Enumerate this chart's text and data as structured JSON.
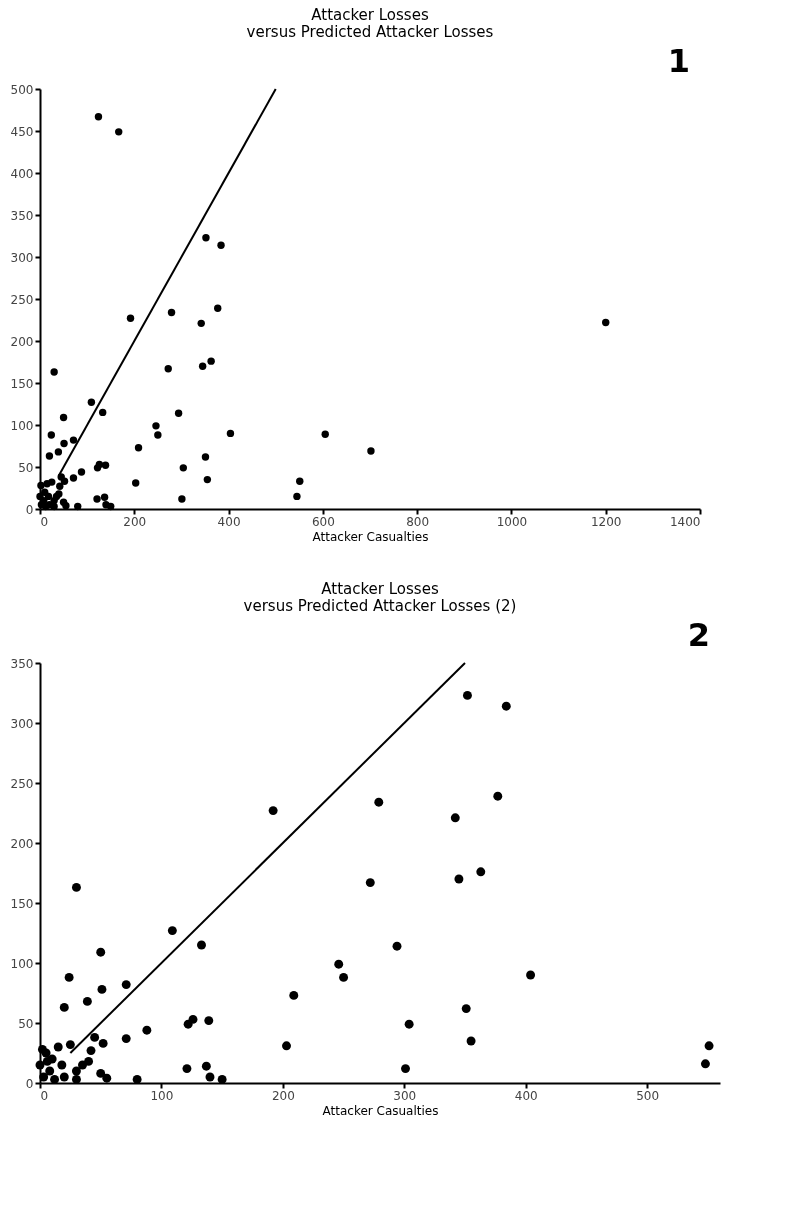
{
  "chart_data": [
    {
      "type": "scatter",
      "title": "Attacker Losses\nversus Predicted Attacker Losses",
      "xlabel": "Attacker Casualties",
      "annotations": [
        "1"
      ],
      "xlim": [
        0,
        1400
      ],
      "xticks": [
        0,
        200,
        400,
        600,
        800,
        1000,
        1200,
        1400
      ],
      "ylim": [
        0,
        500
      ],
      "yticks": [
        0,
        50,
        100,
        150,
        200,
        250,
        300,
        350,
        400,
        450,
        500
      ],
      "grid": false,
      "marker": "circle",
      "series": [
        {
          "color": "#000000",
          "x": [
            124,
            167,
            1200,
            605,
            702,
            551,
            545,
            352,
            384,
            279,
            377,
            342,
            272,
            345,
            363,
            294,
            246,
            250,
            404,
            351,
            304,
            355,
            301,
            192,
            30,
            109,
            133,
            50,
            24,
            51,
            71,
            39,
            20,
            122,
            126,
            139,
            88,
            71,
            203,
            209,
            121,
            137,
            140,
            150,
            80,
            50,
            55,
            45,
            52,
            42,
            40,
            30,
            10,
            15,
            25,
            8,
            18,
            3,
            12,
            20,
            30,
            35,
            0,
            2
          ],
          "values": [
            467,
            449,
            222,
            89,
            69,
            33,
            15,
            323,
            314,
            234,
            239,
            221,
            167,
            170,
            176,
            114,
            99,
            88,
            90,
            62,
            49,
            35,
            12,
            227,
            163,
            127,
            115,
            109,
            88,
            78,
            82,
            68,
            63,
            49,
            53,
            52,
            44,
            37,
            31,
            73,
            12,
            14,
            5,
            3,
            3,
            8,
            4,
            38,
            33,
            27,
            18,
            10,
            20,
            30,
            32,
            10,
            15,
            5,
            3,
            5,
            3,
            15,
            15,
            28
          ]
        },
        {
          "type": "line",
          "marker": "none",
          "color": "#000000",
          "x": [
            40,
            500
          ],
          "values": [
            40,
            500
          ]
        }
      ]
    },
    {
      "type": "scatter",
      "title": "Attacker Losses\nversus Predicted Attacker Losses (2)",
      "xlabel": "Attacker Casualties",
      "annotations": [
        "2"
      ],
      "xlim": [
        0,
        560
      ],
      "xticks": [
        0,
        100,
        200,
        300,
        400,
        500
      ],
      "ylim": [
        0,
        350
      ],
      "yticks": [
        0,
        50,
        100,
        150,
        200,
        250,
        300,
        350
      ],
      "grid": false,
      "marker": "circle",
      "series": [
        {
          "color": "#000000",
          "x": [
            551,
            548,
            352,
            384,
            279,
            377,
            342,
            272,
            345,
            363,
            294,
            246,
            250,
            404,
            351,
            304,
            355,
            301,
            192,
            30,
            109,
            133,
            50,
            24,
            51,
            71,
            39,
            20,
            122,
            126,
            139,
            88,
            71,
            203,
            209,
            121,
            137,
            140,
            150,
            80,
            50,
            55,
            45,
            52,
            42,
            40,
            30,
            10,
            5,
            15,
            25,
            8,
            18,
            3,
            12,
            20,
            30,
            35,
            0,
            2,
            6
          ],
          "values": [
            31,
            16,
            323,
            314,
            234,
            239,
            221,
            167,
            170,
            176,
            114,
            99,
            88,
            90,
            62,
            49,
            35,
            12,
            227,
            163,
            127,
            115,
            109,
            88,
            78,
            82,
            68,
            63,
            49,
            53,
            52,
            44,
            37,
            31,
            73,
            12,
            14,
            5,
            3,
            3,
            8,
            4,
            38,
            33,
            27,
            18,
            10,
            20,
            25,
            30,
            32,
            10,
            15,
            5,
            3,
            5,
            3,
            15,
            15,
            28,
            18
          ]
        },
        {
          "type": "line",
          "marker": "none",
          "color": "#000000",
          "x": [
            25,
            350
          ],
          "values": [
            25,
            350
          ]
        }
      ]
    }
  ]
}
